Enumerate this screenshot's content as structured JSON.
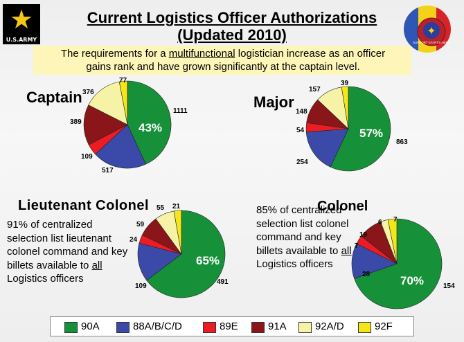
{
  "header": {
    "logo_text": "U.S.ARMY",
    "title_line1": "Current Logistics Officer Authorizations",
    "title_line2": "(Updated 2010)",
    "crest_text": "SUPPORT STARTS HERE"
  },
  "banner": {
    "part1": "The requirements for a ",
    "emphasis": "multifunctional",
    "part2": " logistician increase as an officer",
    "line2": "gains rank and have grown significantly at the captain level."
  },
  "colors": {
    "90A": "#179139",
    "88A/B/C/D": "#3b4aa8",
    "89E": "#ec1c24",
    "91A": "#8a1619",
    "92A/D": "#f7f3a6",
    "92F": "#f4e619"
  },
  "chart_data": [
    {
      "type": "pie",
      "title": "Captain",
      "categories": [
        "90A",
        "88A/B/C/D",
        "89E",
        "91A",
        "92A/D",
        "92F"
      ],
      "values": [
        1111,
        517,
        109,
        389,
        376,
        77
      ],
      "labels": [
        "1111",
        "517",
        "109",
        "389",
        "376",
        "77"
      ],
      "center_label": "43%"
    },
    {
      "type": "pie",
      "title": "Major",
      "categories": [
        "90A",
        "88A/B/C/D",
        "89E",
        "91A",
        "92A/D",
        "92F"
      ],
      "values": [
        863,
        254,
        54,
        148,
        157,
        39
      ],
      "labels": [
        "863",
        "254",
        "54",
        "148",
        "157",
        "39"
      ],
      "center_label": "57%"
    },
    {
      "type": "pie",
      "title": "Lieutenant Colonel",
      "categories": [
        "90A",
        "88A/B/C/D",
        "89E",
        "91A",
        "92A/D",
        "92F"
      ],
      "values": [
        491,
        109,
        24,
        59,
        55,
        21
      ],
      "labels": [
        "491",
        "109",
        "24",
        "59",
        "55",
        "21"
      ],
      "center_label": "65%"
    },
    {
      "type": "pie",
      "title": "Colonel",
      "categories": [
        "90A",
        "88A/B/C/D",
        "89E",
        "91A",
        "92A/D",
        "92F"
      ],
      "values": [
        154,
        28,
        7,
        19,
        6,
        7
      ],
      "labels": [
        "154",
        "28",
        "7",
        "19",
        "6",
        "7"
      ],
      "center_label": "70%"
    }
  ],
  "notes": {
    "ltc": {
      "text": "91% of centralized selection list lieutenant colonel command and key billets available to",
      "underlined": "all",
      "tail": " Logistics officers"
    },
    "col": {
      "text": "85% of centralized selection list colonel command and key billets available to",
      "underlined": "all",
      "tail": " Logistics officers"
    }
  },
  "legend": [
    "90A",
    "88A/B/C/D",
    "89E",
    "91A",
    "92A/D",
    "92F"
  ]
}
